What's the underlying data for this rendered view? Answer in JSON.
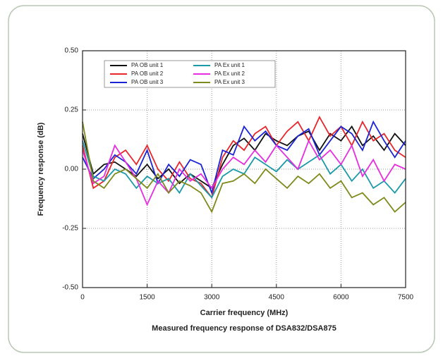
{
  "chart_data": {
    "type": "line",
    "x_label": "Carrier frequency (MHz)",
    "y_label": "Frequency response (dB)",
    "caption": "Measured frequency response of DSA832/DSA875",
    "x": [
      0,
      250,
      500,
      750,
      1000,
      1250,
      1500,
      1750,
      2000,
      2250,
      2500,
      2750,
      3000,
      3250,
      3500,
      3750,
      4000,
      4250,
      4500,
      4750,
      5000,
      5250,
      5500,
      5750,
      6000,
      6250,
      6500,
      6750,
      7000,
      7250,
      7500
    ],
    "series": [
      {
        "name": "PA OB unit 1",
        "color": "#111111",
        "values": [
          0.15,
          -0.02,
          0.02,
          0.03,
          0.0,
          -0.03,
          0.02,
          -0.04,
          0.0,
          -0.06,
          -0.02,
          -0.05,
          -0.08,
          0.02,
          0.1,
          0.13,
          0.08,
          0.15,
          0.12,
          0.1,
          0.14,
          0.16,
          0.08,
          0.15,
          0.12,
          0.18,
          0.1,
          0.14,
          0.08,
          0.15,
          0.1
        ]
      },
      {
        "name": "PA OB unit 2",
        "color": "#e8262b",
        "values": [
          0.1,
          -0.08,
          -0.05,
          0.05,
          0.08,
          0.02,
          0.1,
          0.0,
          -0.05,
          0.03,
          -0.04,
          -0.06,
          -0.12,
          0.05,
          0.12,
          0.08,
          0.15,
          0.18,
          0.1,
          0.16,
          0.2,
          0.12,
          0.22,
          0.14,
          0.18,
          0.1,
          0.2,
          0.12,
          0.15,
          0.08,
          0.05
        ]
      },
      {
        "name": "PA OB unit 3",
        "color": "#1a24d6",
        "values": [
          0.05,
          -0.04,
          0.0,
          0.06,
          0.03,
          -0.02,
          0.08,
          -0.06,
          0.02,
          -0.03,
          0.04,
          0.02,
          -0.1,
          0.08,
          0.06,
          0.18,
          0.12,
          0.16,
          0.1,
          0.08,
          0.14,
          0.17,
          0.06,
          0.12,
          0.18,
          0.15,
          0.08,
          0.2,
          0.12,
          0.05,
          0.12
        ]
      },
      {
        "name": "PA Ex unit 1",
        "color": "#1a9aa8",
        "values": [
          0.12,
          -0.03,
          -0.05,
          0.0,
          -0.02,
          -0.08,
          -0.03,
          -0.06,
          -0.04,
          -0.1,
          -0.02,
          -0.07,
          -0.12,
          -0.03,
          0.0,
          -0.02,
          0.05,
          0.02,
          -0.01,
          0.04,
          0.0,
          0.03,
          0.06,
          -0.02,
          0.02,
          -0.05,
          0.0,
          -0.08,
          -0.05,
          -0.1,
          -0.04
        ]
      },
      {
        "name": "PA Ex unit 2",
        "color": "#e62ee0",
        "values": [
          0.08,
          -0.06,
          -0.03,
          0.1,
          0.03,
          -0.04,
          -0.15,
          -0.05,
          -0.1,
          0.0,
          -0.05,
          -0.02,
          -0.08,
          0.0,
          0.05,
          0.02,
          0.08,
          0.03,
          0.1,
          0.05,
          0.0,
          0.12,
          0.04,
          0.08,
          0.02,
          0.1,
          -0.03,
          0.04,
          -0.05,
          0.02,
          0.0
        ]
      },
      {
        "name": "PA Ex unit 3",
        "color": "#7f8a1c",
        "values": [
          0.2,
          -0.05,
          -0.08,
          -0.02,
          0.0,
          -0.04,
          -0.08,
          -0.02,
          -0.1,
          -0.05,
          -0.07,
          -0.1,
          -0.18,
          -0.06,
          -0.05,
          -0.02,
          -0.06,
          0.0,
          -0.04,
          -0.08,
          -0.03,
          -0.06,
          -0.02,
          -0.08,
          -0.05,
          -0.12,
          -0.1,
          -0.15,
          -0.12,
          -0.18,
          -0.14
        ]
      }
    ],
    "xlim": [
      0,
      7500
    ],
    "xticks": [
      0,
      1500,
      3000,
      4500,
      6000,
      7500
    ],
    "ylim": [
      -0.5,
      0.5
    ],
    "yticks": [
      {
        "value": -0.5,
        "label": "-0.50"
      },
      {
        "value": -0.25,
        "label": "-0.25"
      },
      {
        "value": 0,
        "label": "0.00"
      },
      {
        "value": 0.25,
        "label": "0.25"
      },
      {
        "value": 0.5,
        "label": "0.50"
      }
    ],
    "grid": true
  }
}
